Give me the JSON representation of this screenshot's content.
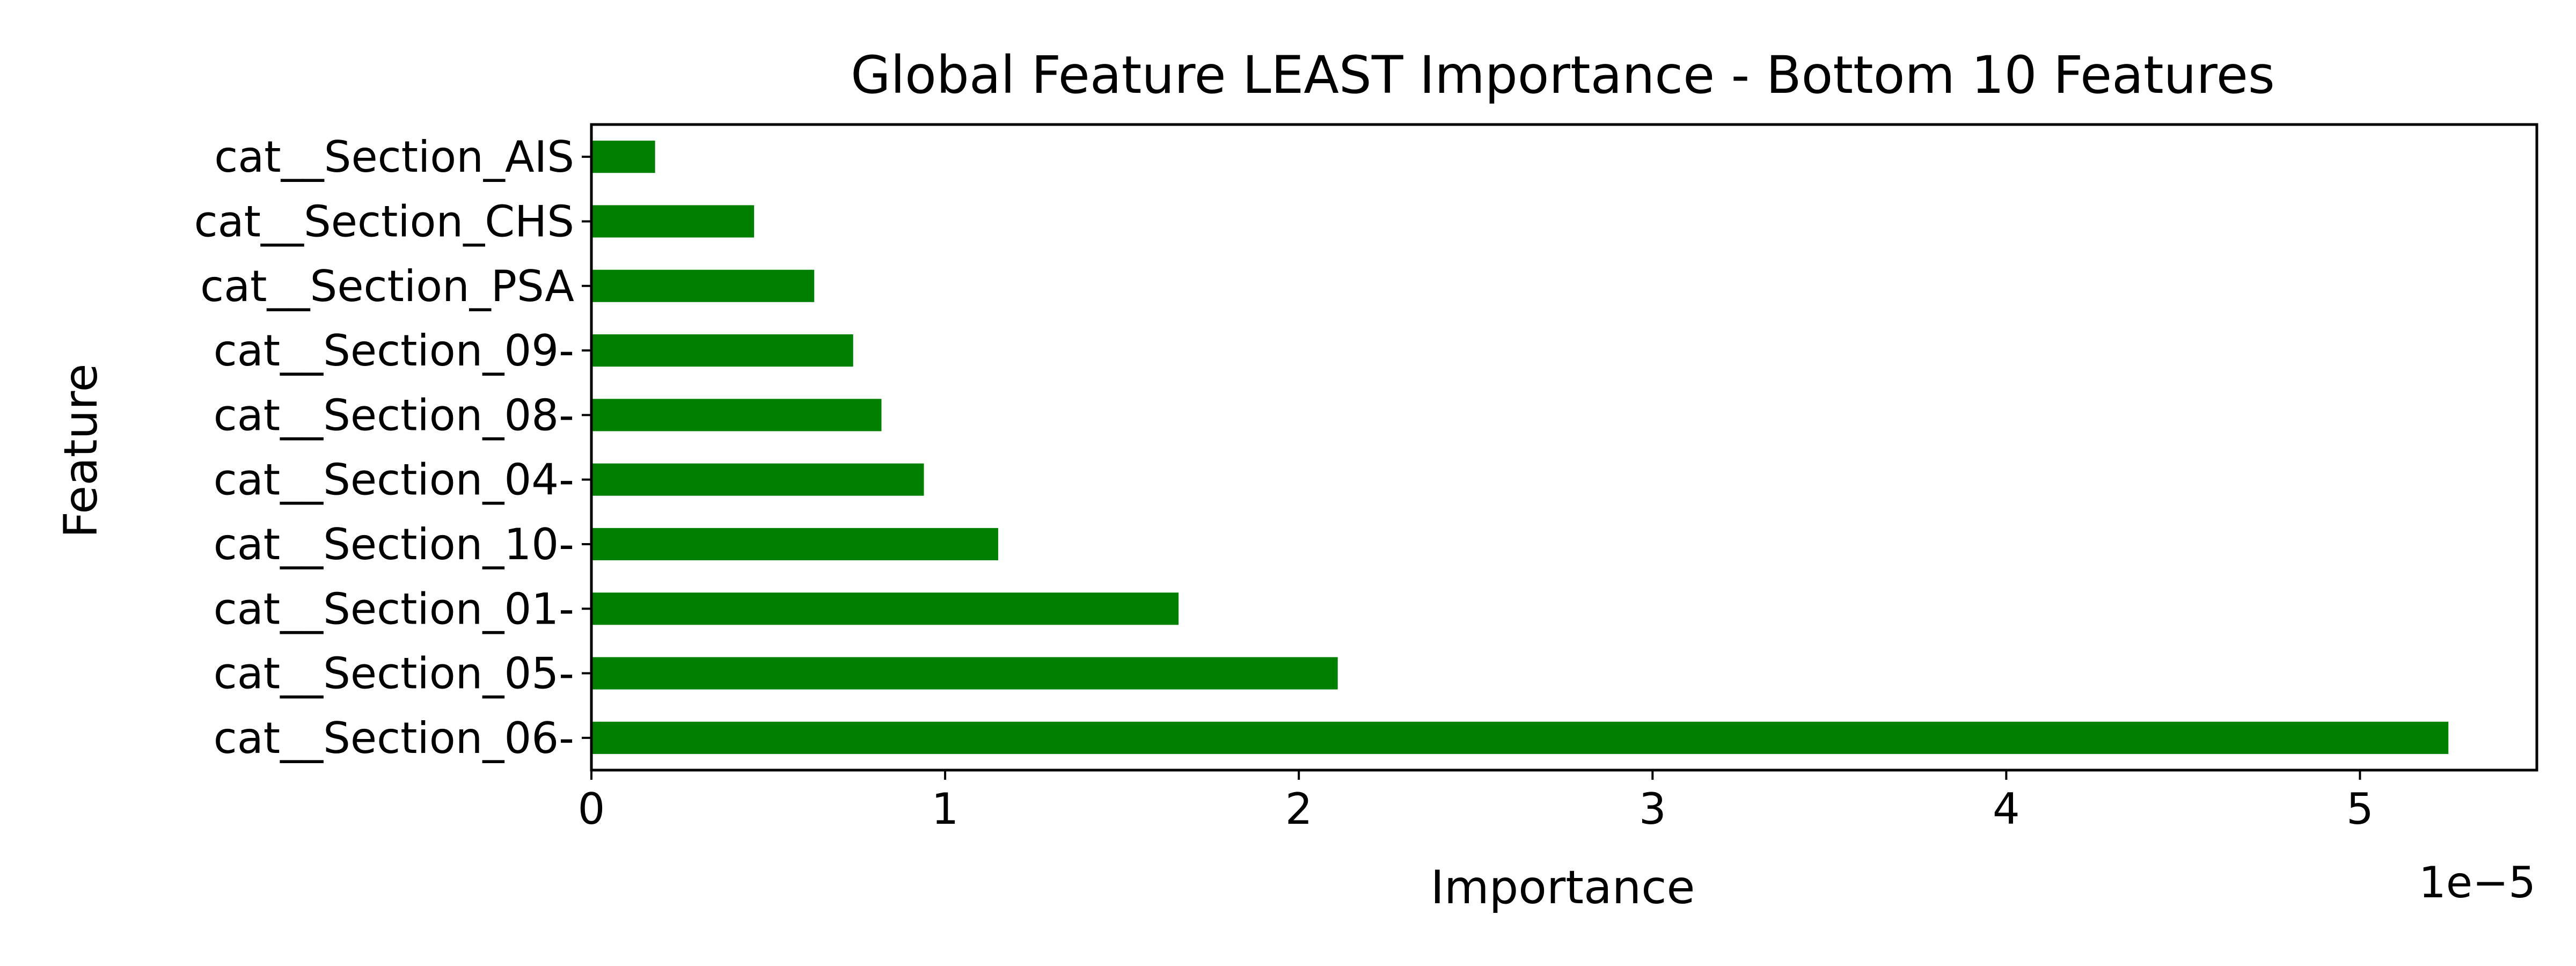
{
  "chart_data": {
    "type": "bar",
    "orientation": "horizontal",
    "title": "Global Feature LEAST Importance - Bottom 10 Features",
    "xlabel": "Importance",
    "ylabel": "Feature",
    "x_offset_label": "1e−5",
    "x_scale_exponent": -5,
    "xlim": [
      0,
      5.5
    ],
    "x_ticks": [
      0,
      1,
      2,
      3,
      4,
      5
    ],
    "x_tick_labels": [
      "0",
      "1",
      "2",
      "3",
      "4",
      "5"
    ],
    "grid": false,
    "legend": "none",
    "bar_color": "#008000",
    "categories": [
      "cat__Section_AIS",
      "cat__Section_CHS",
      "cat__Section_PSA",
      "cat__Section_09-",
      "cat__Section_08-",
      "cat__Section_04-",
      "cat__Section_10-",
      "cat__Section_01-",
      "cat__Section_05-",
      "cat__Section_06-"
    ],
    "values": [
      0.18,
      0.46,
      0.63,
      0.74,
      0.82,
      0.94,
      1.15,
      1.66,
      2.11,
      5.25
    ]
  }
}
